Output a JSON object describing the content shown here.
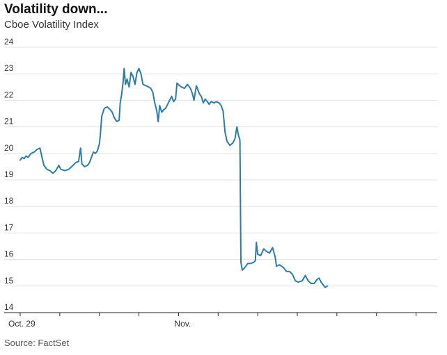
{
  "header": {
    "title": "Volatility down...",
    "subtitle": "Cboe Volatility Index"
  },
  "footer": {
    "source": "Source: FactSet"
  },
  "colors": {
    "line": "#2b7bab",
    "grid": "#e3e3e3",
    "axis": "#222222"
  },
  "chart_data": {
    "type": "line",
    "title": "Volatility down...",
    "subtitle": "Cboe Volatility Index",
    "xlabel": "",
    "ylabel": "",
    "ylim": [
      14,
      24
    ],
    "yticks": [
      14,
      15,
      16,
      17,
      18,
      19,
      20,
      21,
      22,
      23,
      24
    ],
    "xlim": [
      0,
      21
    ],
    "xticks": [
      {
        "x": 0,
        "label": "Oct. 29"
      },
      {
        "x": 2,
        "label": ""
      },
      {
        "x": 4,
        "label": ""
      },
      {
        "x": 6,
        "label": ""
      },
      {
        "x": 8,
        "label": "Nov."
      },
      {
        "x": 10,
        "label": ""
      },
      {
        "x": 12,
        "label": ""
      },
      {
        "x": 14,
        "label": ""
      },
      {
        "x": 16,
        "label": ""
      },
      {
        "x": 18,
        "label": ""
      },
      {
        "x": 20,
        "label": ""
      }
    ],
    "grid": true,
    "legend": "none",
    "series": [
      {
        "values": [
          [
            0.0,
            19.75
          ],
          [
            0.1,
            19.85
          ],
          [
            0.2,
            19.8
          ],
          [
            0.3,
            19.9
          ],
          [
            0.4,
            19.85
          ],
          [
            0.55,
            20.0
          ],
          [
            0.7,
            20.05
          ],
          [
            0.85,
            20.15
          ],
          [
            1.0,
            20.2
          ],
          [
            1.1,
            19.85
          ],
          [
            1.2,
            19.55
          ],
          [
            1.35,
            19.4
          ],
          [
            1.5,
            19.35
          ],
          [
            1.65,
            19.25
          ],
          [
            1.8,
            19.35
          ],
          [
            1.95,
            19.55
          ],
          [
            2.05,
            19.4
          ],
          [
            2.25,
            19.35
          ],
          [
            2.45,
            19.4
          ],
          [
            2.6,
            19.5
          ],
          [
            2.8,
            19.65
          ],
          [
            2.95,
            19.7
          ],
          [
            3.05,
            20.2
          ],
          [
            3.12,
            19.6
          ],
          [
            3.25,
            19.5
          ],
          [
            3.4,
            19.55
          ],
          [
            3.5,
            19.65
          ],
          [
            3.6,
            19.85
          ],
          [
            3.7,
            20.05
          ],
          [
            3.8,
            20.0
          ],
          [
            3.9,
            20.1
          ],
          [
            4.0,
            20.35
          ],
          [
            4.05,
            20.7
          ],
          [
            4.12,
            21.4
          ],
          [
            4.25,
            21.7
          ],
          [
            4.4,
            21.75
          ],
          [
            4.55,
            21.65
          ],
          [
            4.65,
            21.55
          ],
          [
            4.75,
            21.35
          ],
          [
            4.88,
            21.2
          ],
          [
            5.0,
            21.25
          ],
          [
            5.05,
            21.9
          ],
          [
            5.12,
            22.2
          ],
          [
            5.2,
            22.7
          ],
          [
            5.25,
            23.2
          ],
          [
            5.32,
            22.6
          ],
          [
            5.4,
            22.8
          ],
          [
            5.5,
            22.5
          ],
          [
            5.6,
            23.05
          ],
          [
            5.7,
            22.9
          ],
          [
            5.8,
            22.6
          ],
          [
            5.9,
            23.05
          ],
          [
            6.0,
            23.2
          ],
          [
            6.1,
            23.0
          ],
          [
            6.2,
            22.6
          ],
          [
            6.35,
            22.55
          ],
          [
            6.5,
            22.5
          ],
          [
            6.6,
            22.45
          ],
          [
            6.7,
            22.3
          ],
          [
            6.8,
            21.9
          ],
          [
            6.9,
            21.6
          ],
          [
            6.97,
            21.2
          ],
          [
            7.05,
            21.8
          ],
          [
            7.15,
            21.55
          ],
          [
            7.25,
            21.65
          ],
          [
            7.35,
            21.7
          ],
          [
            7.45,
            21.85
          ],
          [
            7.55,
            22.0
          ],
          [
            7.65,
            22.15
          ],
          [
            7.75,
            21.95
          ],
          [
            7.85,
            22.05
          ],
          [
            7.92,
            22.65
          ],
          [
            8.05,
            22.55
          ],
          [
            8.15,
            22.5
          ],
          [
            8.3,
            22.45
          ],
          [
            8.45,
            22.6
          ],
          [
            8.6,
            22.45
          ],
          [
            8.7,
            22.25
          ],
          [
            8.78,
            22.0
          ],
          [
            8.9,
            22.55
          ],
          [
            9.05,
            22.25
          ],
          [
            9.15,
            22.15
          ],
          [
            9.25,
            21.9
          ],
          [
            9.35,
            22.05
          ],
          [
            9.45,
            21.95
          ],
          [
            9.55,
            21.85
          ],
          [
            9.65,
            21.95
          ],
          [
            9.8,
            21.9
          ],
          [
            9.9,
            21.95
          ],
          [
            10.05,
            21.9
          ],
          [
            10.15,
            21.8
          ],
          [
            10.25,
            21.6
          ],
          [
            10.35,
            20.8
          ],
          [
            10.45,
            20.45
          ],
          [
            10.6,
            20.3
          ],
          [
            10.75,
            20.4
          ],
          [
            10.85,
            20.55
          ],
          [
            10.95,
            21.0
          ],
          [
            11.02,
            20.7
          ],
          [
            11.1,
            20.5
          ],
          [
            11.15,
            15.9
          ],
          [
            11.22,
            15.6
          ],
          [
            11.35,
            15.7
          ],
          [
            11.5,
            15.85
          ],
          [
            11.65,
            15.85
          ],
          [
            11.8,
            15.9
          ],
          [
            11.88,
            15.95
          ],
          [
            11.93,
            16.65
          ],
          [
            12.0,
            16.2
          ],
          [
            12.15,
            16.15
          ],
          [
            12.3,
            16.4
          ],
          [
            12.45,
            16.3
          ],
          [
            12.6,
            16.25
          ],
          [
            12.75,
            16.45
          ],
          [
            12.88,
            16.1
          ],
          [
            12.95,
            15.75
          ],
          [
            13.1,
            15.8
          ],
          [
            13.3,
            15.7
          ],
          [
            13.45,
            15.55
          ],
          [
            13.6,
            15.55
          ],
          [
            13.75,
            15.45
          ],
          [
            13.9,
            15.2
          ],
          [
            14.05,
            15.15
          ],
          [
            14.25,
            15.2
          ],
          [
            14.4,
            15.4
          ],
          [
            14.55,
            15.2
          ],
          [
            14.7,
            15.1
          ],
          [
            14.85,
            15.1
          ],
          [
            15.0,
            15.25
          ],
          [
            15.1,
            15.3
          ],
          [
            15.2,
            15.15
          ],
          [
            15.3,
            15.05
          ],
          [
            15.4,
            14.95
          ],
          [
            15.52,
            15.0
          ]
        ]
      }
    ]
  }
}
